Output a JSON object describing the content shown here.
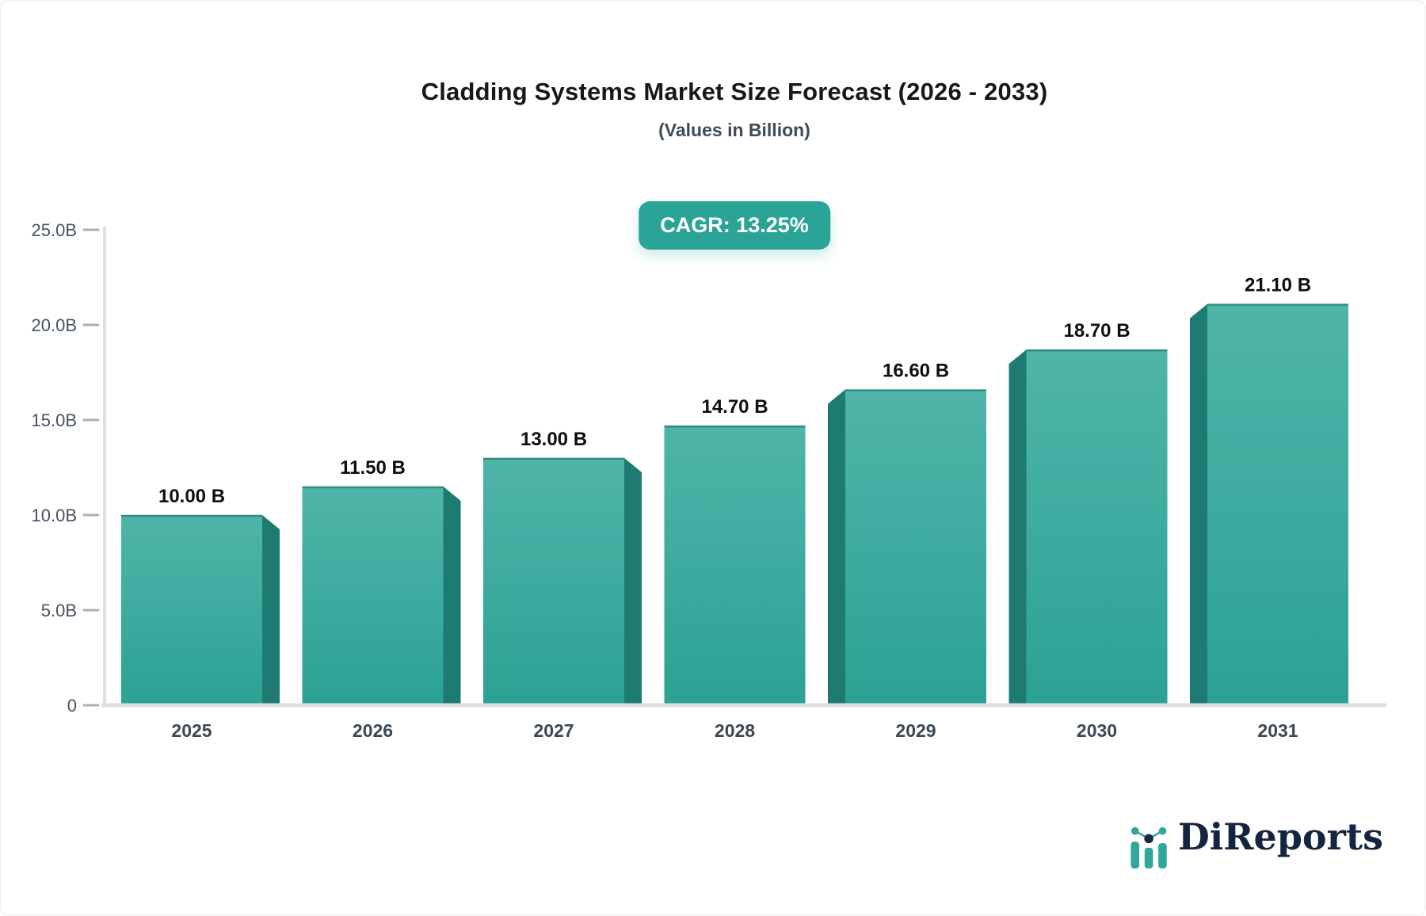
{
  "page": {
    "title": "Cladding Systems Market Size Forecast (2026 - 2033)",
    "subtitle": "(Values in Billion)"
  },
  "badge": {
    "label": "CAGR: 13.25%"
  },
  "chart_data": {
    "type": "bar",
    "title": "Cladding Systems Market Size Forecast (2026 - 2033)",
    "subtitle": "(Values in Billion)",
    "unit": "Billion",
    "cagr_percent": 13.25,
    "categories": [
      "2025",
      "2026",
      "2027",
      "2028",
      "2029",
      "2030",
      "2031"
    ],
    "values": [
      10.0,
      11.5,
      13.0,
      14.7,
      16.6,
      18.7,
      21.1
    ],
    "value_labels": [
      "10.00 B",
      "11.50 B",
      "13.00 B",
      "14.70 B",
      "16.60 B",
      "18.70 B",
      "21.10 B"
    ],
    "xlabel": "",
    "ylabel": "",
    "ylim": [
      0,
      25
    ],
    "y_ticks": [
      {
        "value": 25,
        "label": "25.0B"
      },
      {
        "value": 20,
        "label": "20.0B"
      },
      {
        "value": 15,
        "label": "15.0B"
      },
      {
        "value": 10,
        "label": "10.0B"
      },
      {
        "value": 5,
        "label": "5.0B"
      },
      {
        "value": 0,
        "label": "0"
      }
    ],
    "grid": false,
    "legend": false,
    "bar_style": "3d-extruded"
  },
  "branding": {
    "logo_text": "DiReports",
    "logo_icon": "bar-chart-logo-icon"
  },
  "colors": {
    "bar_top": "#4fb5a8",
    "bar_bottom": "#2ba293",
    "bar_side": "#1e7b71",
    "bar_edge": "#2e8d80",
    "badge_bg": "#2aa496",
    "badge_text": "#ffffff",
    "axis_line": "#dcdfe3",
    "tick_mark": "#aab1b9",
    "tick_text": "#47525e",
    "category_text": "#3c4754",
    "value_text": "#0c0f13",
    "title_text": "#15181d",
    "subtitle_text": "#3f4a56",
    "logo_text_color": "#15253f",
    "logo_teal": "#2fa79a",
    "logo_navy": "#1b2b45",
    "background": "#ffffff"
  }
}
